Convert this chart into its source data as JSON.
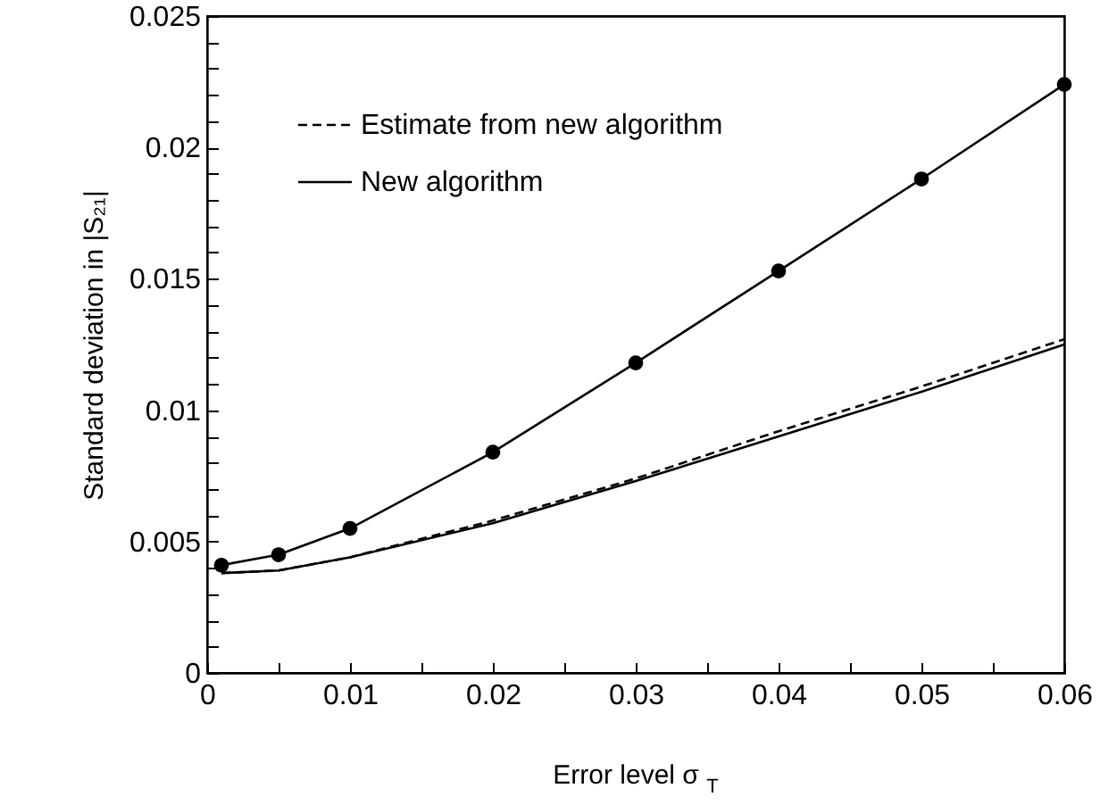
{
  "chart_data": {
    "type": "line",
    "xlabel": "Error level  σ$_{T}$",
    "ylabel": "Standard deviation in |S₂₁|",
    "xlim": [
      0,
      0.06
    ],
    "ylim": [
      0,
      0.025
    ],
    "xticks": [
      0,
      {
        "value": 0.005,
        "label": null
      },
      0.01,
      {
        "value": 0.015,
        "label": null
      },
      0.02,
      {
        "value": 0.025,
        "label": null
      },
      0.03,
      {
        "value": 0.035,
        "label": null
      },
      0.04,
      {
        "value": 0.045,
        "label": null
      },
      0.05,
      {
        "value": 0.055,
        "label": null
      },
      0.06
    ],
    "yticks": [
      0,
      {
        "value": 0.001,
        "label": null
      },
      {
        "value": 0.002,
        "label": null
      },
      {
        "value": 0.003,
        "label": null
      },
      {
        "value": 0.004,
        "label": null
      },
      0.005,
      {
        "value": 0.006,
        "label": null
      },
      {
        "value": 0.007,
        "label": null
      },
      {
        "value": 0.008,
        "label": null
      },
      {
        "value": 0.009,
        "label": null
      },
      0.01,
      {
        "value": 0.011,
        "label": null
      },
      {
        "value": 0.012,
        "label": null
      },
      {
        "value": 0.013,
        "label": null
      },
      {
        "value": 0.014,
        "label": null
      },
      0.015,
      {
        "value": 0.016,
        "label": null
      },
      {
        "value": 0.017,
        "label": null
      },
      {
        "value": 0.018,
        "label": null
      },
      {
        "value": 0.019,
        "label": null
      },
      0.02,
      {
        "value": 0.021,
        "label": null
      },
      {
        "value": 0.022,
        "label": null
      },
      {
        "value": 0.023,
        "label": null
      },
      {
        "value": 0.024,
        "label": null
      },
      0.025
    ],
    "x": [
      0.001,
      0.005,
      0.01,
      0.02,
      0.03,
      0.04,
      0.05,
      0.06
    ],
    "legend": "top left",
    "grid": false,
    "series": [
      {
        "name": "Estimate from new algorithm",
        "color": "#000000",
        "line_style": "dashed",
        "marker": "none",
        "values": [
          0.0038,
          0.0039,
          0.0044,
          0.0058,
          0.0074,
          0.0092,
          0.0109,
          0.0127
        ]
      },
      {
        "name": "New algorithm",
        "color": "#000000",
        "line_style": "solid",
        "marker": "none",
        "values": [
          0.0038,
          0.0039,
          0.0044,
          0.0057,
          0.0073,
          0.009,
          0.0107,
          0.0125
        ]
      },
      {
        "color": "#000000",
        "line_style": "solid",
        "marker": "circle",
        "values": [
          0.0041,
          0.0045,
          0.0055,
          0.0084,
          0.0118,
          0.0153,
          0.0188,
          0.0224
        ]
      }
    ]
  }
}
